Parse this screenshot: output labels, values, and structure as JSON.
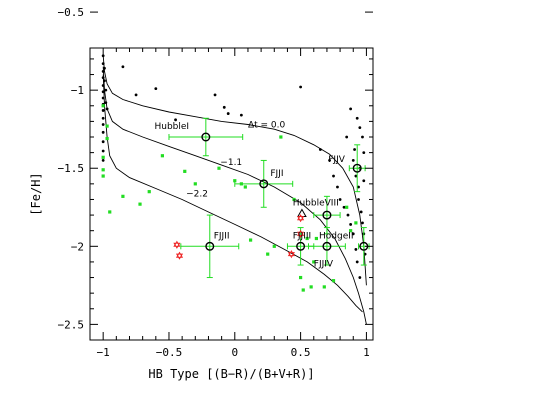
{
  "chart_data": {
    "type": "scatter",
    "title": "",
    "xlabel": "HB Type [(B−R)/(B+V+R)]",
    "ylabel": "[Fe/H]",
    "xlim": [
      -1.1,
      1.05
    ],
    "ylim": [
      -2.6,
      -0.73
    ],
    "xticks": [
      -1,
      -0.5,
      0,
      0.5,
      1
    ],
    "xtick_labels": [
      "−1",
      "−0.5",
      "0",
      "0.5",
      "1"
    ],
    "yticks": [
      -2.5,
      -2,
      -1.5,
      -1,
      -0.5
    ],
    "ytick_labels": [
      "−2.5",
      "−2",
      "−1.5",
      "−1",
      "−0.5"
    ],
    "grid": false,
    "colors": {
      "black": "#000000",
      "green": "#22dd22",
      "red": "#ee2222"
    },
    "isochrones": [
      {
        "label": "Δt = 0.0",
        "points": [
          [
            -1.0,
            -0.78
          ],
          [
            -0.99,
            -0.88
          ],
          [
            -0.97,
            -0.96
          ],
          [
            -0.93,
            -1.02
          ],
          [
            -0.85,
            -1.06
          ],
          [
            -0.7,
            -1.1
          ],
          [
            -0.5,
            -1.14
          ],
          [
            -0.3,
            -1.17
          ],
          [
            -0.1,
            -1.2
          ],
          [
            0.1,
            -1.22
          ],
          [
            0.3,
            -1.25
          ],
          [
            0.45,
            -1.29
          ],
          [
            0.6,
            -1.35
          ],
          [
            0.72,
            -1.41
          ],
          [
            0.82,
            -1.5
          ],
          [
            0.9,
            -1.62
          ],
          [
            0.95,
            -1.8
          ],
          [
            0.98,
            -2.0
          ],
          [
            1.0,
            -2.25
          ]
        ]
      },
      {
        "label": "−1.1",
        "points": [
          [
            -1.0,
            -0.85
          ],
          [
            -0.99,
            -1.0
          ],
          [
            -0.97,
            -1.12
          ],
          [
            -0.93,
            -1.2
          ],
          [
            -0.85,
            -1.25
          ],
          [
            -0.7,
            -1.3
          ],
          [
            -0.5,
            -1.36
          ],
          [
            -0.3,
            -1.42
          ],
          [
            -0.1,
            -1.48
          ],
          [
            0.1,
            -1.54
          ],
          [
            0.3,
            -1.62
          ],
          [
            0.5,
            -1.72
          ],
          [
            0.65,
            -1.83
          ],
          [
            0.76,
            -1.95
          ],
          [
            0.84,
            -2.08
          ],
          [
            0.9,
            -2.2
          ],
          [
            0.94,
            -2.3
          ],
          [
            0.98,
            -2.42
          ],
          [
            1.0,
            -2.5
          ]
        ]
      },
      {
        "label": "−2.2",
        "points": [
          [
            -1.0,
            -0.9
          ],
          [
            -0.99,
            -1.1
          ],
          [
            -0.97,
            -1.3
          ],
          [
            -0.95,
            -1.42
          ],
          [
            -0.9,
            -1.5
          ],
          [
            -0.8,
            -1.56
          ],
          [
            -0.6,
            -1.63
          ],
          [
            -0.4,
            -1.7
          ],
          [
            -0.2,
            -1.78
          ],
          [
            0.0,
            -1.86
          ],
          [
            0.2,
            -1.94
          ],
          [
            0.4,
            -2.03
          ],
          [
            0.55,
            -2.1
          ],
          [
            0.68,
            -2.18
          ],
          [
            0.78,
            -2.25
          ],
          [
            0.86,
            -2.32
          ],
          [
            0.92,
            -2.38
          ],
          [
            0.97,
            -2.42
          ]
        ]
      }
    ],
    "isochrone_labels": [
      {
        "text": "Δt = 0.0",
        "x": 0.1,
        "y": -1.24
      },
      {
        "text": "−1.1",
        "x": -0.11,
        "y": -1.48
      },
      {
        "text": "−2.2",
        "x": -0.37,
        "y": -1.68
      }
    ],
    "mw_black_points": [
      [
        -1.0,
        -0.78
      ],
      [
        -1.0,
        -0.83
      ],
      [
        -1.0,
        -0.88
      ],
      [
        -1.0,
        -0.92
      ],
      [
        -1.0,
        -0.97
      ],
      [
        -1.0,
        -1.01
      ],
      [
        -1.0,
        -1.05
      ],
      [
        -1.0,
        -1.09
      ],
      [
        -1.0,
        -1.13
      ],
      [
        -1.0,
        -1.18
      ],
      [
        -1.0,
        -1.22
      ],
      [
        -1.0,
        -1.27
      ],
      [
        -1.0,
        -1.33
      ],
      [
        -1.0,
        -1.39
      ],
      [
        -1.0,
        -1.45
      ],
      [
        -0.99,
        -0.86
      ],
      [
        -0.99,
        -0.94
      ],
      [
        -0.98,
        -1.0
      ],
      [
        -0.98,
        -1.08
      ],
      [
        -0.97,
        -1.12
      ],
      [
        -0.85,
        -0.85
      ],
      [
        -0.75,
        -1.03
      ],
      [
        -0.6,
        -0.99
      ],
      [
        -0.45,
        -1.19
      ],
      [
        -0.15,
        -1.03
      ],
      [
        -0.08,
        -1.11
      ],
      [
        -0.05,
        -1.15
      ],
      [
        0.05,
        -1.16
      ],
      [
        0.5,
        -0.98
      ],
      [
        0.65,
        -1.38
      ],
      [
        0.72,
        -1.45
      ],
      [
        0.75,
        -1.55
      ],
      [
        0.78,
        -1.62
      ],
      [
        0.8,
        -1.7
      ],
      [
        0.83,
        -1.75
      ],
      [
        0.85,
        -1.3
      ],
      [
        0.86,
        -1.8
      ],
      [
        0.88,
        -1.86
      ],
      [
        0.88,
        -1.12
      ],
      [
        0.9,
        -1.92
      ],
      [
        0.9,
        -1.45
      ],
      [
        0.91,
        -1.38
      ],
      [
        0.92,
        -2.02
      ],
      [
        0.92,
        -1.55
      ],
      [
        0.93,
        -1.18
      ],
      [
        0.93,
        -2.1
      ],
      [
        0.94,
        -1.62
      ],
      [
        0.94,
        -1.7
      ],
      [
        0.95,
        -2.2
      ],
      [
        0.95,
        -1.24
      ],
      [
        0.95,
        -1.5
      ],
      [
        0.96,
        -1.78
      ],
      [
        0.97,
        -1.3
      ],
      [
        0.97,
        -1.85
      ],
      [
        0.98,
        -1.58
      ],
      [
        0.98,
        -1.92
      ],
      [
        0.98,
        -1.4
      ],
      [
        0.99,
        -2.05
      ]
    ],
    "mw_green_points": [
      [
        -1.0,
        -1.1
      ],
      [
        -1.0,
        -1.43
      ],
      [
        -1.0,
        -1.51
      ],
      [
        -1.0,
        -1.55
      ],
      [
        -0.97,
        -1.23
      ],
      [
        -0.97,
        -1.31
      ],
      [
        -0.95,
        -1.78
      ],
      [
        -0.85,
        -1.68
      ],
      [
        -0.72,
        -1.73
      ],
      [
        -0.65,
        -1.65
      ],
      [
        -0.55,
        -1.42
      ],
      [
        -0.38,
        -1.52
      ],
      [
        -0.3,
        -1.6
      ],
      [
        -0.12,
        -1.5
      ],
      [
        0.0,
        -1.58
      ],
      [
        0.05,
        -1.6
      ],
      [
        0.08,
        -1.62
      ],
      [
        0.12,
        -1.96
      ],
      [
        0.25,
        -2.05
      ],
      [
        0.3,
        -2.0
      ],
      [
        0.35,
        -1.3
      ],
      [
        0.45,
        -1.7
      ],
      [
        0.5,
        -2.2
      ],
      [
        0.52,
        -2.28
      ],
      [
        0.55,
        -1.95
      ],
      [
        0.58,
        -2.26
      ],
      [
        0.6,
        -2.1
      ],
      [
        0.62,
        -1.95
      ],
      [
        0.68,
        -2.26
      ],
      [
        0.75,
        -2.22
      ],
      [
        0.85,
        -1.75
      ],
      [
        0.88,
        -1.9
      ],
      [
        0.92,
        -1.85
      ]
    ],
    "m33_clusters": [
      {
        "name": "HubbleI",
        "x": -0.22,
        "y": -1.3,
        "xerr": 0.28,
        "yerr": 0.12
      },
      {
        "name": "FJJI",
        "x": 0.22,
        "y": -1.6,
        "xerr": 0.22,
        "yerr": 0.15
      },
      {
        "name": "FJJII",
        "x": -0.19,
        "y": -2.0,
        "xerr": 0.22,
        "yerr": 0.2
      },
      {
        "name": "FJJIII",
        "x": 0.5,
        "y": -2.0,
        "xerr": 0.1,
        "yerr": 0.12
      },
      {
        "name": "FJJIV",
        "x": 0.7,
        "y": -2.0,
        "xerr": 0.14,
        "yerr": 0.12
      },
      {
        "name": "FJJV",
        "x": 0.93,
        "y": -1.5,
        "xerr": 0.06,
        "yerr": 0.15
      },
      {
        "name": "HubbleVIII",
        "x": 0.7,
        "y": -1.8,
        "xerr": 0.1,
        "yerr": 0.12
      },
      {
        "name": "HodgeII",
        "x": 0.98,
        "y": -2.0,
        "xerr": 0.04,
        "yerr": 0.12
      }
    ],
    "cluster_label_positions": [
      {
        "name": "HubbleI",
        "x": -0.61,
        "y": -1.25
      },
      {
        "name": "FJJI",
        "x": 0.27,
        "y": -1.55
      },
      {
        "name": "FJJII",
        "x": -0.16,
        "y": -1.95
      },
      {
        "name": "FJJIII",
        "x": 0.44,
        "y": -1.95
      },
      {
        "name": "FJJIV",
        "x": 0.6,
        "y": -2.13
      },
      {
        "name": "FJJV",
        "x": 0.71,
        "y": -1.46
      },
      {
        "name": "HubbleVIII",
        "x": 0.44,
        "y": -1.74
      },
      {
        "name": "HodgeII",
        "x": 0.64,
        "y": -1.95
      }
    ],
    "red_stars": [
      [
        -0.44,
        -1.99
      ],
      [
        -0.42,
        -2.06
      ],
      [
        0.43,
        -2.05
      ],
      [
        0.5,
        -1.82
      ],
      [
        0.5,
        -1.92
      ]
    ],
    "triangle": {
      "x": 0.51,
      "y": -1.79
    }
  }
}
